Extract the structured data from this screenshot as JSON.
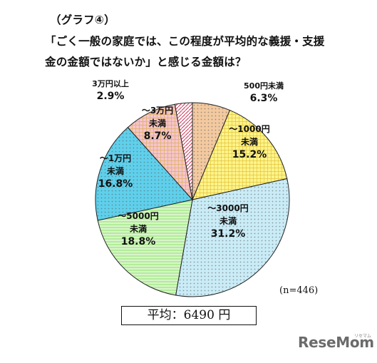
{
  "chart_title": {
    "line1": "（グラフ④）",
    "line2": "「ごく一般の家庭では、この程度が平均的な義援・支援",
    "line3": "金の金額ではないか」と感じる金額は？"
  },
  "note": "(n=446)",
  "average": "平均：6490 円",
  "logo": {
    "text": "ReseMom",
    "sub": "リセマム"
  },
  "chart_data": {
    "type": "pie",
    "slices": [
      {
        "label_lines": [
          "500円未満"
        ],
        "value": 6.3,
        "value_text": "6.3%",
        "color": "#f3c9a0",
        "pattern": "dots"
      },
      {
        "label_lines": [
          "～1000円",
          "未満"
        ],
        "value": 15.2,
        "value_text": "15.2%",
        "color": "#fff38a",
        "pattern": "grid"
      },
      {
        "label_lines": [
          "～3000円",
          "未満"
        ],
        "value": 31.2,
        "value_text": "31.2%",
        "color": "#c9ecf7",
        "pattern": "dots"
      },
      {
        "label_lines": [
          "～5000円",
          "未満"
        ],
        "value": 18.8,
        "value_text": "18.8%",
        "color": "#b3ec9a",
        "pattern": "hlines"
      },
      {
        "label_lines": [
          "～1万円",
          "未満"
        ],
        "value": 16.8,
        "value_text": "16.8%",
        "color": "#5fd0ec",
        "pattern": "dots"
      },
      {
        "label_lines": [
          "～3万円",
          "未満"
        ],
        "value": 8.7,
        "value_text": "8.7%",
        "color": "#f6c4cc",
        "pattern": "grid"
      },
      {
        "label_lines": [
          "3万円以上"
        ],
        "value": 2.9,
        "value_text": "2.9%",
        "color": "#ffffff",
        "pattern": "diag"
      }
    ]
  }
}
